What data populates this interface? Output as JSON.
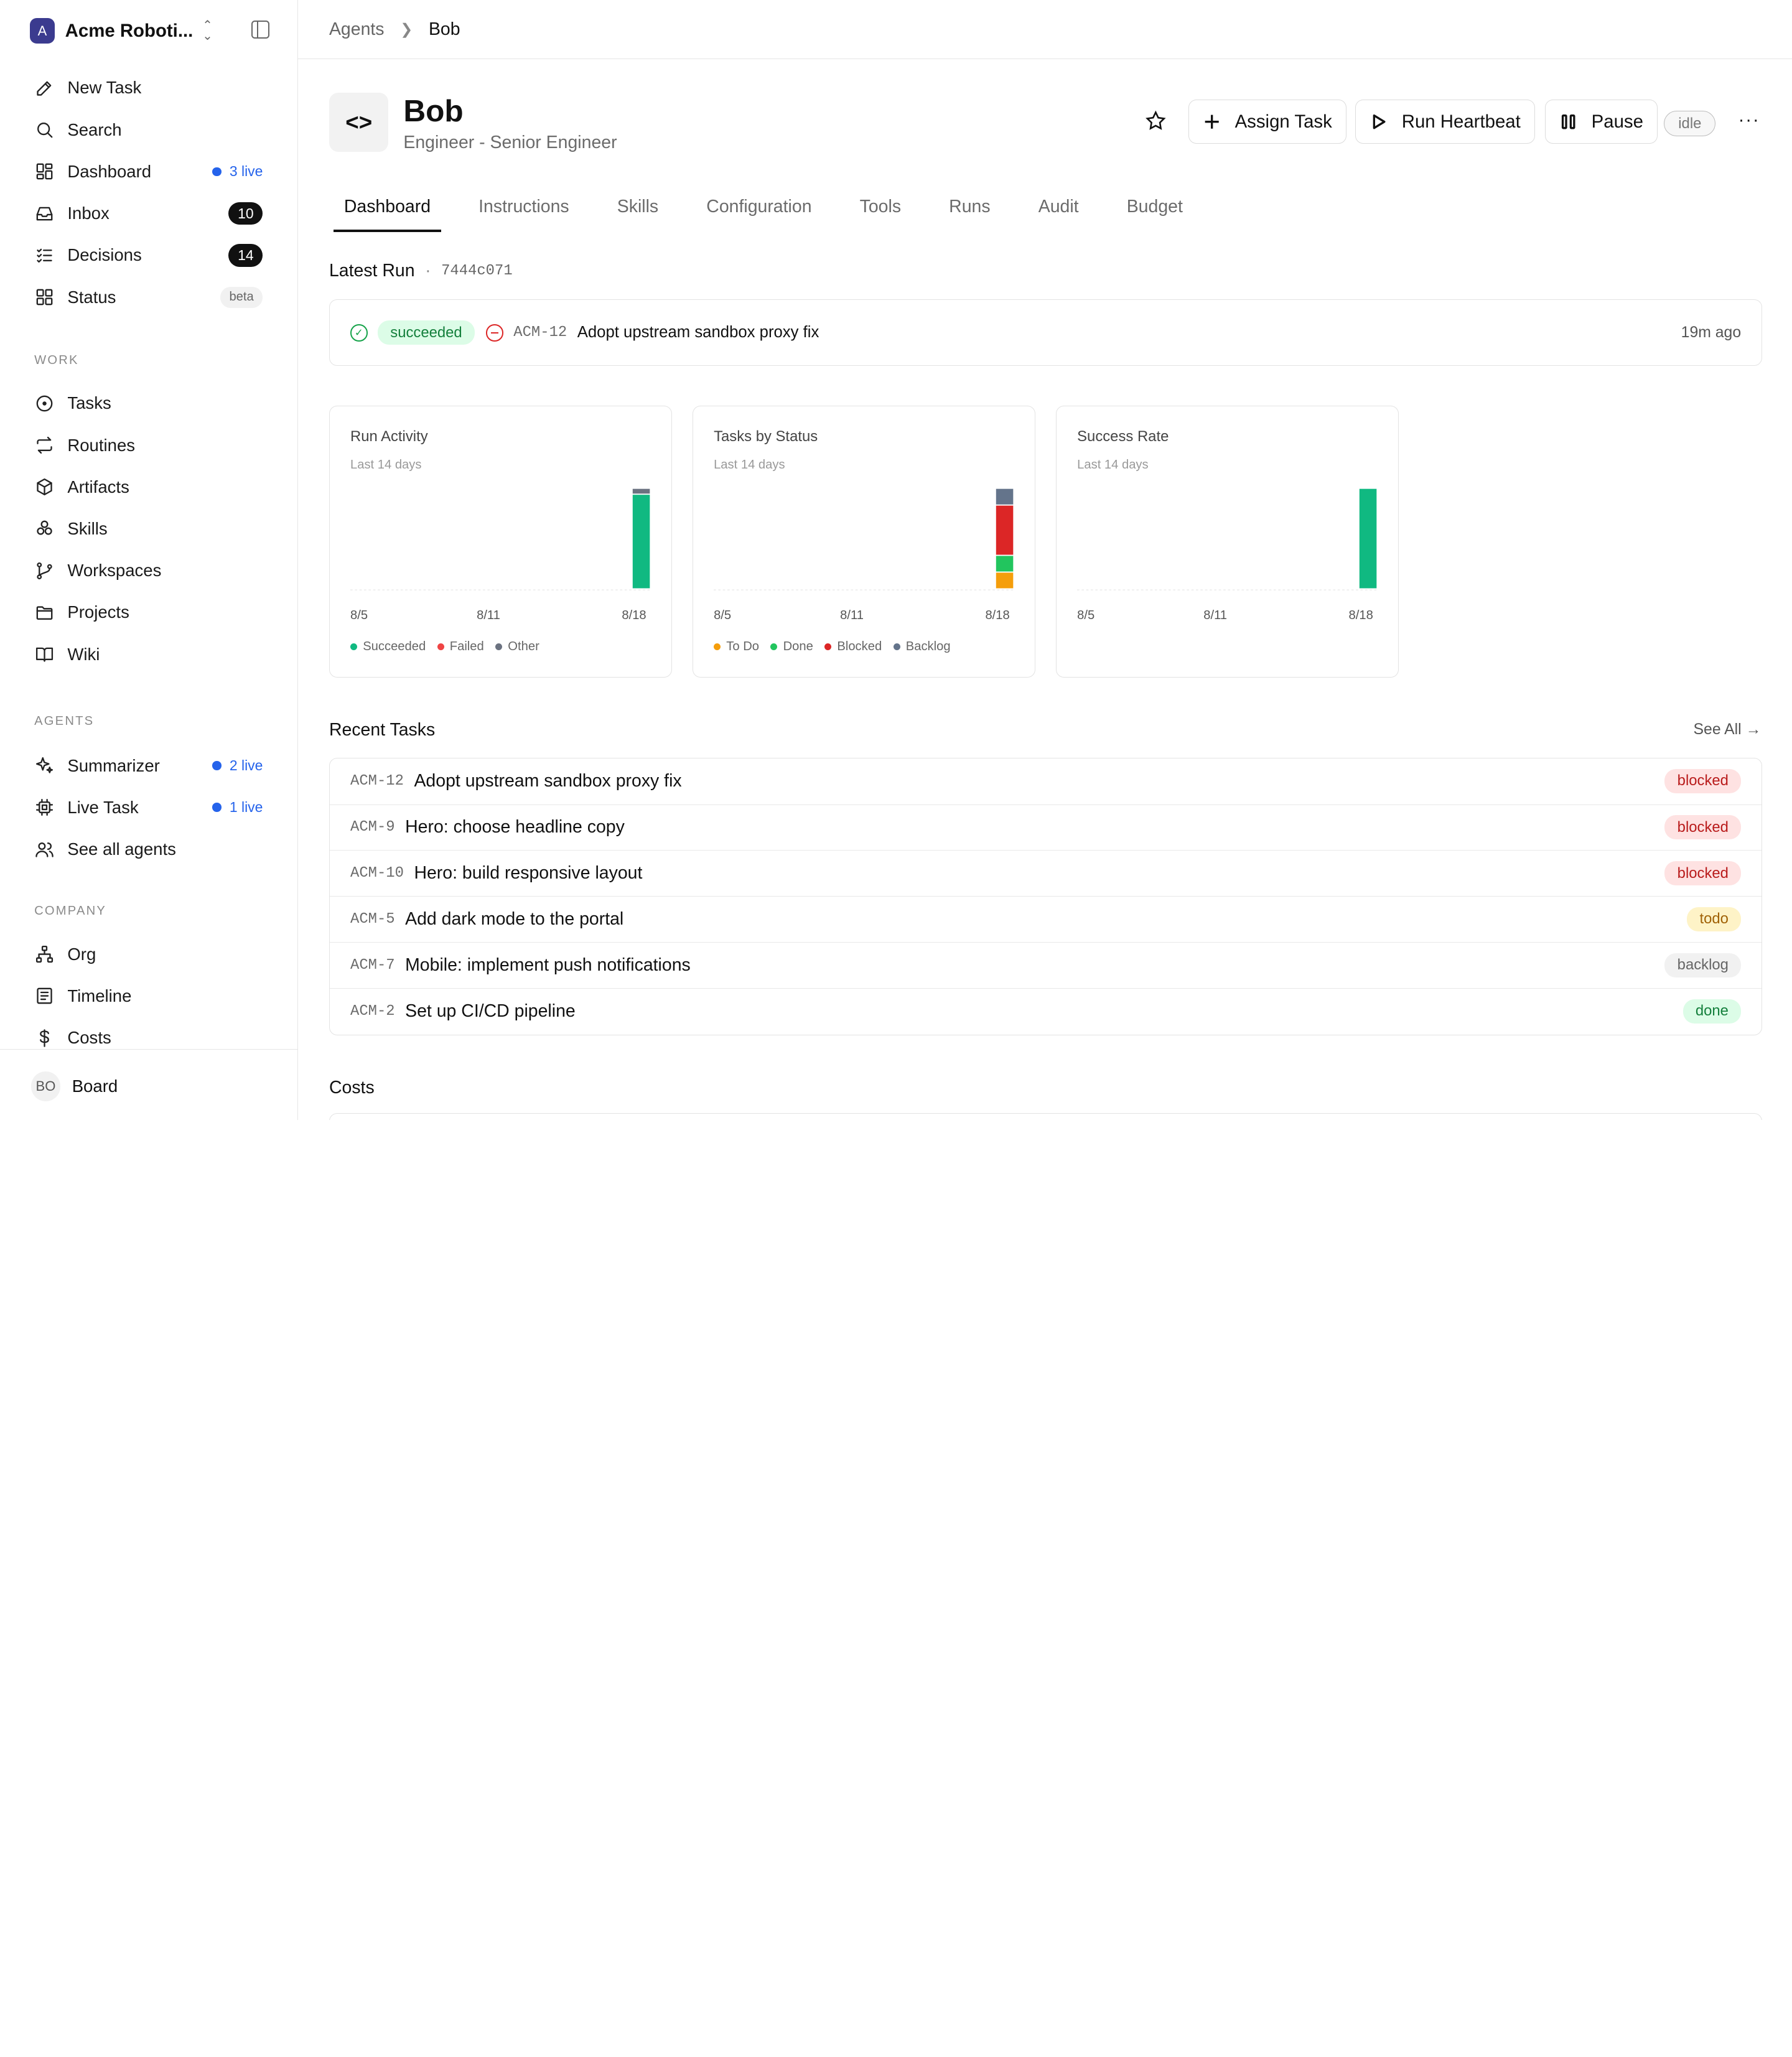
{
  "workspace": {
    "logo": "A",
    "name": "Acme Roboti..."
  },
  "nav_primary": [
    {
      "label": "New Task",
      "icon": "edit-icon"
    },
    {
      "label": "Search",
      "icon": "search-icon"
    },
    {
      "label": "Dashboard",
      "icon": "dashboard-icon",
      "live": "3 live"
    },
    {
      "label": "Inbox",
      "icon": "inbox-icon",
      "count": "10"
    },
    {
      "label": "Decisions",
      "icon": "checklist-icon",
      "count": "14"
    },
    {
      "label": "Status",
      "icon": "grid-icon",
      "tag": "beta"
    }
  ],
  "section_work": "WORK",
  "nav_work": [
    {
      "label": "Tasks",
      "icon": "circle-dot-icon"
    },
    {
      "label": "Routines",
      "icon": "repeat-icon"
    },
    {
      "label": "Artifacts",
      "icon": "box-icon"
    },
    {
      "label": "Skills",
      "icon": "cubes-icon"
    },
    {
      "label": "Workspaces",
      "icon": "git-branch-icon"
    },
    {
      "label": "Projects",
      "icon": "folder-icon"
    },
    {
      "label": "Wiki",
      "icon": "book-icon"
    }
  ],
  "section_agents": "AGENTS",
  "nav_agents": [
    {
      "label": "Summarizer",
      "icon": "sparkles-icon",
      "live": "2 live"
    },
    {
      "label": "Live Task",
      "icon": "cpu-icon",
      "live": "1 live"
    },
    {
      "label": "See all agents",
      "icon": "users-icon"
    }
  ],
  "section_company": "COMPANY",
  "nav_company": [
    {
      "label": "Org",
      "icon": "org-chart-icon"
    },
    {
      "label": "Timeline",
      "icon": "list-icon"
    },
    {
      "label": "Costs",
      "icon": "dollar-icon"
    }
  ],
  "footer": {
    "initials": "BO",
    "label": "Board"
  },
  "breadcrumb": {
    "parent": "Agents",
    "current": "Bob"
  },
  "agent": {
    "icon": "<>",
    "name": "Bob",
    "role": "Engineer - Senior Engineer",
    "status": "idle"
  },
  "actions": {
    "assign": "Assign Task",
    "heartbeat": "Run Heartbeat",
    "pause": "Pause",
    "more": "···"
  },
  "tabs": [
    "Dashboard",
    "Instructions",
    "Skills",
    "Configuration",
    "Tools",
    "Runs",
    "Audit",
    "Budget"
  ],
  "active_tab": "Dashboard",
  "latest_run": {
    "title": "Latest Run",
    "dot": "·",
    "id": "7444c071",
    "status": "succeeded",
    "task_id": "ACM-12",
    "task_title": "Adopt upstream sandbox proxy fix",
    "time": "19m ago"
  },
  "colors": {
    "succeeded": "#10b981",
    "failed": "#ef4444",
    "other": "#6b7280",
    "todo": "#f59e0b",
    "done": "#22c55e",
    "blocked": "#dc2626",
    "backlog": "#64748b"
  },
  "chart_data": [
    {
      "type": "bar",
      "title": "Run Activity",
      "subtitle": "Last 14 days",
      "x": [
        "8/5",
        "8/6",
        "8/7",
        "8/8",
        "8/9",
        "8/10",
        "8/11",
        "8/12",
        "8/13",
        "8/14",
        "8/15",
        "8/16",
        "8/17",
        "8/18"
      ],
      "x_ticks": [
        "8/5",
        "8/11",
        "8/18"
      ],
      "series": [
        {
          "name": "Succeeded",
          "values": [
            0,
            0,
            0,
            0,
            0,
            0,
            0,
            0,
            0,
            0,
            0,
            0,
            0,
            16
          ]
        },
        {
          "name": "Failed",
          "values": [
            0,
            0,
            0,
            0,
            0,
            0,
            0,
            0,
            0,
            0,
            0,
            0,
            0,
            0
          ]
        },
        {
          "name": "Other",
          "values": [
            0,
            0,
            0,
            0,
            0,
            0,
            0,
            0,
            0,
            0,
            0,
            0,
            0,
            1
          ]
        }
      ],
      "stacked": true,
      "legend": "bottom-left"
    },
    {
      "type": "bar",
      "title": "Tasks by Status",
      "subtitle": "Last 14 days",
      "x": [
        "8/5",
        "8/6",
        "8/7",
        "8/8",
        "8/9",
        "8/10",
        "8/11",
        "8/12",
        "8/13",
        "8/14",
        "8/15",
        "8/16",
        "8/17",
        "8/18"
      ],
      "x_ticks": [
        "8/5",
        "8/11",
        "8/18"
      ],
      "series": [
        {
          "name": "To Do",
          "values": [
            0,
            0,
            0,
            0,
            0,
            0,
            0,
            0,
            0,
            0,
            0,
            0,
            0,
            1
          ]
        },
        {
          "name": "Done",
          "values": [
            0,
            0,
            0,
            0,
            0,
            0,
            0,
            0,
            0,
            0,
            0,
            0,
            0,
            1
          ]
        },
        {
          "name": "Blocked",
          "values": [
            0,
            0,
            0,
            0,
            0,
            0,
            0,
            0,
            0,
            0,
            0,
            0,
            0,
            3
          ]
        },
        {
          "name": "Backlog",
          "values": [
            0,
            0,
            0,
            0,
            0,
            0,
            0,
            0,
            0,
            0,
            0,
            0,
            0,
            1
          ]
        }
      ],
      "stacked": true,
      "legend": "bottom-left"
    },
    {
      "type": "bar",
      "title": "Success Rate",
      "subtitle": "Last 14 days",
      "x": [
        "8/5",
        "8/6",
        "8/7",
        "8/8",
        "8/9",
        "8/10",
        "8/11",
        "8/12",
        "8/13",
        "8/14",
        "8/15",
        "8/16",
        "8/17",
        "8/18"
      ],
      "x_ticks": [
        "8/5",
        "8/11",
        "8/18"
      ],
      "series": [
        {
          "values": [
            0,
            0,
            0,
            0,
            0,
            0,
            0,
            0,
            0,
            0,
            0,
            0,
            0,
            100
          ]
        }
      ],
      "ylim": [
        0,
        100
      ]
    }
  ],
  "recent_tasks": {
    "title": "Recent Tasks",
    "see_all": "See All →",
    "rows": [
      {
        "id": "ACM-12",
        "title": "Adopt upstream sandbox proxy fix",
        "status": "blocked"
      },
      {
        "id": "ACM-9",
        "title": "Hero: choose headline copy",
        "status": "blocked"
      },
      {
        "id": "ACM-10",
        "title": "Hero: build responsive layout",
        "status": "blocked"
      },
      {
        "id": "ACM-5",
        "title": "Add dark mode to the portal",
        "status": "todo"
      },
      {
        "id": "ACM-7",
        "title": "Mobile: implement push notifications",
        "status": "backlog"
      },
      {
        "id": "ACM-2",
        "title": "Set up CI/CD pipeline",
        "status": "done"
      }
    ]
  },
  "costs_title": "Costs"
}
